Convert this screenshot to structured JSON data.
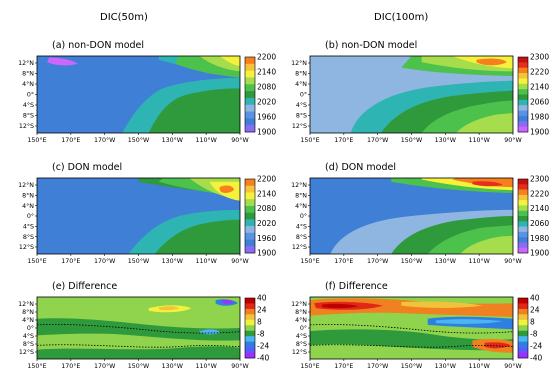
{
  "column_titles": [
    "DIC(50m)",
    "DIC(100m)"
  ],
  "colors": {
    "dic": [
      "#cc66ff",
      "#8a6cf4",
      "#3f7fd6",
      "#5b92e6",
      "#8fb6e0",
      "#2fb4b4",
      "#2f9a3c",
      "#4cc24c",
      "#a6dd4c",
      "#f5f23c",
      "#f7c23c",
      "#f7801e",
      "#e62e1e",
      "#c01414"
    ],
    "diff": [
      "#9b30ff",
      "#5a5aff",
      "#2f7fe0",
      "#4cb4f0",
      "#2f9a3c",
      "#8fd44c",
      "#f2f23c",
      "#f2c23c",
      "#f08020",
      "#e02818",
      "#c00000"
    ]
  },
  "chart_data": [
    {
      "type": "heatmap",
      "panel": "a",
      "title": "(a) non-DON model",
      "xticks": [
        "150°E",
        "170°E",
        "170°W",
        "150°W",
        "130°W",
        "110°W",
        "90°W"
      ],
      "yticks": [
        "12°N",
        "8°N",
        "4°N",
        "0°",
        "4°S",
        "8°S",
        "12°S"
      ],
      "colorbar": {
        "ticks": [
          "2200",
          "2140",
          "2080",
          "2020",
          "1960",
          "1900"
        ],
        "range": [
          1900,
          2200
        ]
      }
    },
    {
      "type": "heatmap",
      "panel": "b",
      "title": "(b) non-DON model",
      "xticks": [
        "150°E",
        "170°E",
        "170°W",
        "150°W",
        "130°W",
        "110°W",
        "90°W"
      ],
      "yticks": [
        "12°N",
        "8°N",
        "4°N",
        "0°",
        "4°S",
        "8°S",
        "12°S"
      ],
      "colorbar": {
        "ticks": [
          "2300",
          "2220",
          "2140",
          "2060",
          "1980",
          "1900"
        ],
        "range": [
          1900,
          2300
        ]
      }
    },
    {
      "type": "heatmap",
      "panel": "c",
      "title": "(c) DON model",
      "xticks": [
        "150°E",
        "170°E",
        "170°W",
        "150°W",
        "130°W",
        "110°W",
        "90°W"
      ],
      "yticks": [
        "12°N",
        "8°N",
        "4°N",
        "0°",
        "4°S",
        "8°S",
        "12°S"
      ],
      "colorbar": {
        "ticks": [
          "2200",
          "2140",
          "2080",
          "2020",
          "1960",
          "1900"
        ],
        "range": [
          1900,
          2200
        ]
      }
    },
    {
      "type": "heatmap",
      "panel": "d",
      "title": "(d) DON model",
      "xticks": [
        "150°E",
        "170°E",
        "170°W",
        "150°W",
        "130°W",
        "110°W",
        "90°W"
      ],
      "yticks": [
        "12°N",
        "8°N",
        "4°N",
        "0°",
        "4°S",
        "8°S",
        "12°S"
      ],
      "colorbar": {
        "ticks": [
          "2300",
          "2220",
          "2140",
          "2060",
          "1980",
          "1900"
        ],
        "range": [
          1900,
          2300
        ]
      }
    },
    {
      "type": "heatmap",
      "panel": "e",
      "title": "(e) Difference",
      "xticks": [
        "150°E",
        "170°E",
        "170°W",
        "150°W",
        "130°W",
        "110°W",
        "90°W"
      ],
      "yticks": [
        "12°N",
        "8°N",
        "4°N",
        "0°",
        "4°S",
        "8°S",
        "12°S"
      ],
      "colorbar": {
        "ticks": [
          "40",
          "24",
          "8",
          "-8",
          "-24",
          "-40"
        ],
        "range": [
          -40,
          40
        ]
      }
    },
    {
      "type": "heatmap",
      "panel": "f",
      "title": "(f) Difference",
      "xticks": [
        "150°E",
        "170°E",
        "170°W",
        "150°W",
        "130°W",
        "110°W",
        "90°W"
      ],
      "yticks": [
        "12°N",
        "8°N",
        "4°N",
        "0°",
        "4°S",
        "8°S",
        "12°S"
      ],
      "colorbar": {
        "ticks": [
          "40",
          "24",
          "8",
          "-8",
          "-24",
          "-40"
        ],
        "range": [
          -40,
          40
        ]
      }
    }
  ]
}
